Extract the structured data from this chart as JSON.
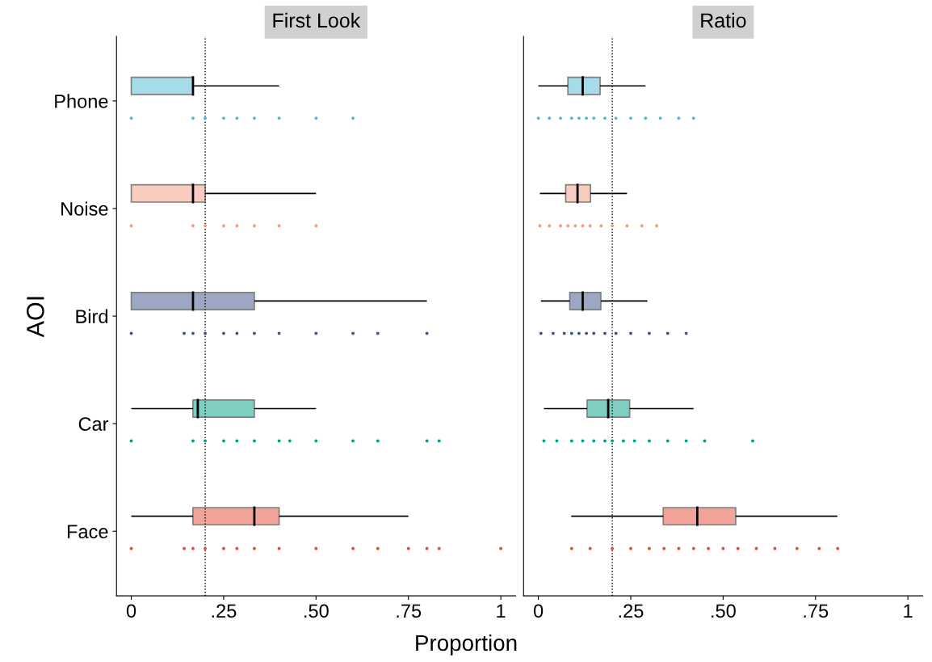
{
  "chart_data": [
    {
      "type": "box",
      "title": "First Look",
      "ylabel": "AOI",
      "xlabel": "Proportion",
      "orientation": "horizontal",
      "categories": [
        "Phone",
        "Noise",
        "Bird",
        "Car",
        "Face"
      ],
      "xlim": [
        -0.04,
        1.04
      ],
      "xticks": [
        {
          "value": 0,
          "label": "0"
        },
        {
          "value": 0.25,
          "label": ".25"
        },
        {
          "value": 0.5,
          "label": ".50"
        },
        {
          "value": 0.75,
          "label": ".75"
        },
        {
          "value": 1,
          "label": "1"
        }
      ],
      "ref_lines": [
        {
          "axis": "x",
          "value": 0.2,
          "line_style": "dotted",
          "color": "#000000"
        }
      ],
      "grid": false,
      "legend": false,
      "series": [
        {
          "type": "box",
          "colors": [
            "#4dbbd5",
            "#f39b7f",
            "#3c5488",
            "#00a087",
            "#e64b35"
          ],
          "boxes": [
            {
              "low": 0,
              "q1": 0,
              "median": 0.167,
              "q3": 0.167,
              "high": 0.4
            },
            {
              "low": 0,
              "q1": 0,
              "median": 0.167,
              "q3": 0.2,
              "high": 0.5
            },
            {
              "low": 0,
              "q1": 0,
              "median": 0.167,
              "q3": 0.333,
              "high": 0.8
            },
            {
              "low": 0,
              "q1": 0.167,
              "median": 0.18,
              "q3": 0.333,
              "high": 0.5
            },
            {
              "low": 0,
              "q1": 0.167,
              "median": 0.333,
              "q3": 0.4,
              "high": 0.75
            }
          ]
        },
        {
          "type": "scatter",
          "color": "#4dbbd5",
          "x": [
            "Phone",
            "Phone",
            "Phone",
            "Phone",
            "Phone",
            "Phone",
            "Phone",
            "Phone",
            "Phone"
          ],
          "values": [
            0,
            0.167,
            0.2,
            0.25,
            0.286,
            0.333,
            0.4,
            0.5,
            0.6
          ]
        },
        {
          "type": "scatter",
          "color": "#f39b7f",
          "x": [
            "Noise",
            "Noise",
            "Noise",
            "Noise",
            "Noise",
            "Noise",
            "Noise",
            "Noise"
          ],
          "values": [
            0,
            0.167,
            0.2,
            0.25,
            0.286,
            0.333,
            0.4,
            0.5
          ]
        },
        {
          "type": "scatter",
          "color": "#3c5488",
          "x": [
            "Bird",
            "Bird",
            "Bird",
            "Bird",
            "Bird",
            "Bird",
            "Bird",
            "Bird",
            "Bird",
            "Bird",
            "Bird",
            "Bird"
          ],
          "values": [
            0,
            0.143,
            0.167,
            0.2,
            0.25,
            0.286,
            0.333,
            0.4,
            0.5,
            0.6,
            0.667,
            0.8
          ]
        },
        {
          "type": "scatter",
          "color": "#00a087",
          "x": [
            "Car",
            "Car",
            "Car",
            "Car",
            "Car",
            "Car",
            "Car",
            "Car",
            "Car",
            "Car",
            "Car",
            "Car",
            "Car"
          ],
          "values": [
            0,
            0.167,
            0.2,
            0.25,
            0.286,
            0.333,
            0.4,
            0.429,
            0.5,
            0.6,
            0.667,
            0.8,
            0.833
          ]
        },
        {
          "type": "scatter",
          "color": "#e64b35",
          "x": [
            "Face",
            "Face",
            "Face",
            "Face",
            "Face",
            "Face",
            "Face",
            "Face",
            "Face",
            "Face",
            "Face",
            "Face",
            "Face",
            "Face",
            "Face"
          ],
          "values": [
            0,
            0.143,
            0.167,
            0.2,
            0.25,
            0.286,
            0.333,
            0.4,
            0.5,
            0.6,
            0.667,
            0.75,
            0.8,
            0.833,
            1
          ]
        }
      ]
    },
    {
      "type": "box",
      "title": "Ratio",
      "orientation": "horizontal",
      "categories": [
        "Phone",
        "Noise",
        "Bird",
        "Car",
        "Face"
      ],
      "tick_labels": "x",
      "xlim": [
        -0.04,
        1.04
      ],
      "xticks": [
        {
          "value": 0,
          "label": "0"
        },
        {
          "value": 0.25,
          "label": ".25"
        },
        {
          "value": 0.5,
          "label": ".50"
        },
        {
          "value": 0.75,
          "label": ".75"
        },
        {
          "value": 1,
          "label": "1"
        }
      ],
      "ref_lines": [
        {
          "axis": "x",
          "value": 0.2,
          "line_style": "dotted",
          "color": "#000000"
        }
      ],
      "grid": false,
      "legend": false,
      "series": [
        {
          "type": "box",
          "colors": [
            "#4dbbd5",
            "#f39b7f",
            "#3c5488",
            "#00a087",
            "#e64b35"
          ],
          "boxes": [
            {
              "low": 0,
              "q1": 0.08,
              "median": 0.12,
              "q3": 0.167,
              "high": 0.29
            },
            {
              "low": 0.004,
              "q1": 0.074,
              "median": 0.106,
              "q3": 0.141,
              "high": 0.24
            },
            {
              "low": 0.007,
              "q1": 0.085,
              "median": 0.12,
              "q3": 0.169,
              "high": 0.295
            },
            {
              "low": 0.015,
              "q1": 0.132,
              "median": 0.189,
              "q3": 0.247,
              "high": 0.42
            },
            {
              "low": 0.089,
              "q1": 0.338,
              "median": 0.43,
              "q3": 0.534,
              "high": 0.809
            }
          ]
        },
        {
          "type": "scatter",
          "color": "#4dbbd5",
          "x": [
            "Phone",
            "Phone",
            "Phone",
            "Phone",
            "Phone",
            "Phone",
            "Phone",
            "Phone",
            "Phone",
            "Phone",
            "Phone",
            "Phone",
            "Phone",
            "Phone"
          ],
          "values": [
            0,
            0.03,
            0.06,
            0.09,
            0.11,
            0.13,
            0.15,
            0.18,
            0.21,
            0.25,
            0.29,
            0.33,
            0.38,
            0.42
          ]
        },
        {
          "type": "scatter",
          "color": "#f39b7f",
          "x": [
            "Noise",
            "Noise",
            "Noise",
            "Noise",
            "Noise",
            "Noise",
            "Noise",
            "Noise",
            "Noise",
            "Noise",
            "Noise",
            "Noise"
          ],
          "values": [
            0.004,
            0.03,
            0.06,
            0.08,
            0.1,
            0.12,
            0.14,
            0.17,
            0.2,
            0.24,
            0.28,
            0.32
          ]
        },
        {
          "type": "scatter",
          "color": "#3c5488",
          "x": [
            "Bird",
            "Bird",
            "Bird",
            "Bird",
            "Bird",
            "Bird",
            "Bird",
            "Bird",
            "Bird",
            "Bird",
            "Bird",
            "Bird",
            "Bird"
          ],
          "values": [
            0.007,
            0.04,
            0.07,
            0.09,
            0.11,
            0.13,
            0.15,
            0.18,
            0.21,
            0.25,
            0.3,
            0.35,
            0.4
          ]
        },
        {
          "type": "scatter",
          "color": "#00a087",
          "x": [
            "Car",
            "Car",
            "Car",
            "Car",
            "Car",
            "Car",
            "Car",
            "Car",
            "Car",
            "Car",
            "Car",
            "Car",
            "Car",
            "Car"
          ],
          "values": [
            0.015,
            0.05,
            0.09,
            0.12,
            0.15,
            0.18,
            0.2,
            0.23,
            0.26,
            0.3,
            0.35,
            0.4,
            0.45,
            0.58
          ]
        },
        {
          "type": "scatter",
          "color": "#e64b35",
          "x": [
            "Face",
            "Face",
            "Face",
            "Face",
            "Face",
            "Face",
            "Face",
            "Face",
            "Face",
            "Face",
            "Face",
            "Face",
            "Face",
            "Face",
            "Face",
            "Face"
          ],
          "values": [
            0.09,
            0.14,
            0.2,
            0.25,
            0.3,
            0.34,
            0.38,
            0.42,
            0.46,
            0.5,
            0.54,
            0.59,
            0.64,
            0.7,
            0.76,
            0.81
          ]
        }
      ]
    }
  ]
}
